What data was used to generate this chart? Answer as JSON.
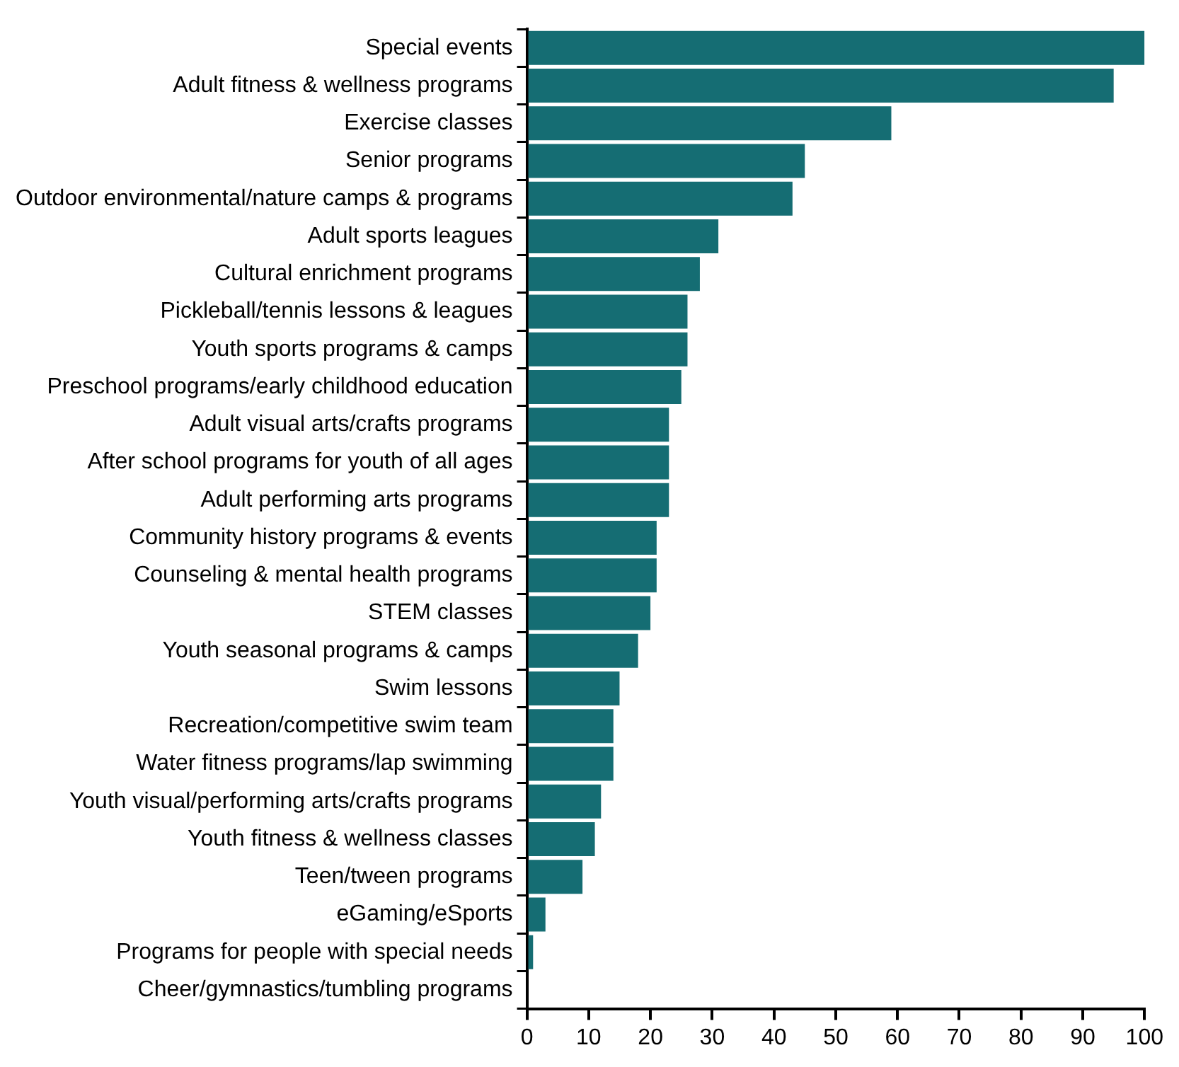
{
  "chart_data": {
    "type": "bar",
    "orientation": "horizontal",
    "categories": [
      "Special events",
      "Adult fitness & wellness programs",
      "Exercise classes",
      "Senior programs",
      "Outdoor environmental/nature camps & programs",
      "Adult sports leagues",
      "Cultural enrichment programs",
      "Pickleball/tennis lessons & leagues",
      "Youth sports programs & camps",
      "Preschool programs/early childhood education",
      "Adult visual arts/crafts programs",
      "After school programs for youth of all ages",
      "Adult performing arts programs",
      "Community history programs & events",
      "Counseling & mental health programs",
      "STEM classes",
      "Youth seasonal programs & camps",
      "Swim lessons",
      "Recreation/competitive swim team",
      "Water fitness programs/lap swimming",
      "Youth visual/performing arts/crafts programs",
      "Youth fitness & wellness classes",
      "Teen/tween programs",
      "eGaming/eSports",
      "Programs for people with special needs",
      "Cheer/gymnastics/tumbling programs"
    ],
    "values": [
      100,
      95,
      59,
      45,
      43,
      31,
      28,
      26,
      26,
      25,
      23,
      23,
      23,
      21,
      21,
      20,
      18,
      15,
      14,
      14,
      12,
      11,
      9,
      3,
      1,
      0
    ],
    "color": "#156d73",
    "xlim": [
      0,
      100
    ],
    "xticks": [
      0,
      10,
      20,
      30,
      40,
      50,
      60,
      70,
      80,
      90,
      100
    ],
    "grid": false,
    "legend": false
  }
}
